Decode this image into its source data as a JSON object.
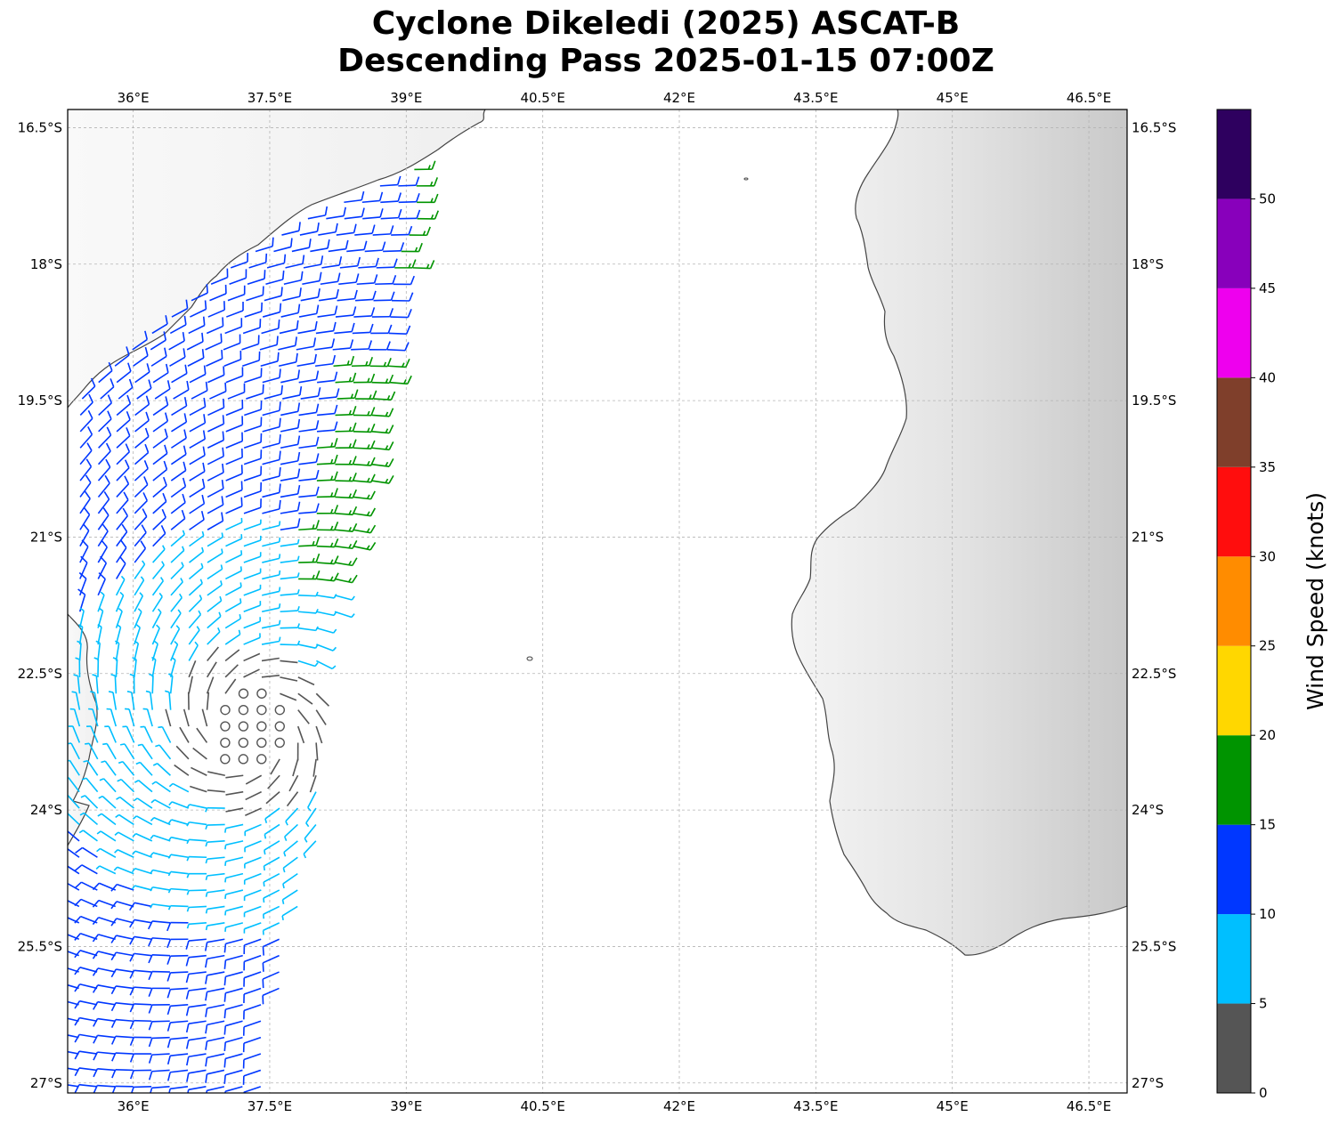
{
  "title_line1": "Cyclone Dikeledi (2025) ASCAT-B",
  "title_line2": "Descending Pass 2025-01-15 07:00Z",
  "map": {
    "lon_range": [
      35.28,
      46.92
    ],
    "lat_range": [
      -27.11,
      -16.3
    ],
    "lon_ticks": [
      "36°E",
      "37.5°E",
      "39°E",
      "40.5°E",
      "42°E",
      "43.5°E",
      "45°E",
      "46.5°E"
    ],
    "lat_ticks": [
      "16.5°S",
      "18°S",
      "19.5°S",
      "21°S",
      "22.5°S",
      "24°S",
      "25.5°S",
      "27°S"
    ],
    "gridlines": true,
    "coastline_color": "#444444",
    "land_shading": "grayscale terrain"
  },
  "colorbar": {
    "label": "Wind Speed (knots)",
    "tick_labels": [
      "0",
      "5",
      "10",
      "15",
      "20",
      "25",
      "30",
      "35",
      "40",
      "45",
      "50"
    ],
    "bins": [
      {
        "from": 0,
        "to": 5,
        "color": "#555555"
      },
      {
        "from": 5,
        "to": 10,
        "color": "#00bfff"
      },
      {
        "from": 10,
        "to": 15,
        "color": "#0037ff"
      },
      {
        "from": 15,
        "to": 20,
        "color": "#009400"
      },
      {
        "from": 20,
        "to": 25,
        "color": "#ffd700"
      },
      {
        "from": 25,
        "to": 30,
        "color": "#ff8c00"
      },
      {
        "from": 30,
        "to": 35,
        "color": "#ff0d0d"
      },
      {
        "from": 35,
        "to": 40,
        "color": "#7f3f2b"
      },
      {
        "from": 40,
        "to": 45,
        "color": "#ee00ee"
      },
      {
        "from": 45,
        "to": 50,
        "color": "#8800bb"
      },
      {
        "from": 50,
        "to": 55,
        "color": "#2e005f"
      }
    ]
  },
  "chart_data": {
    "type": "wind barb map",
    "wind_field": {
      "center": {
        "lon": 37.3,
        "lat": -23.1
      },
      "calm_radius_deg": 0.9,
      "swath_east_edge": [
        [
          39.35,
          -16.6
        ],
        [
          38.8,
          -19.5
        ],
        [
          38.5,
          -21.0
        ],
        [
          38.0,
          -22.5
        ],
        [
          38.1,
          -24.0
        ],
        [
          37.7,
          -25.5
        ],
        [
          37.45,
          -27.0
        ]
      ],
      "speed_bands_kt": {
        "calm_core": 0,
        "inner": 8,
        "middle": 12,
        "outer_east": 17
      }
    }
  }
}
